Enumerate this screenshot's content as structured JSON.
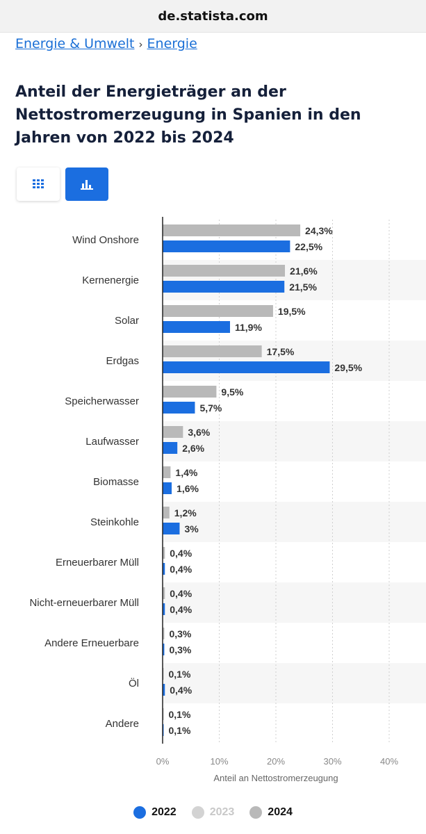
{
  "browser": {
    "url": "de.statista.com"
  },
  "breadcrumb": {
    "parent": "Energie & Umwelt",
    "separator": "›",
    "current": "Energie"
  },
  "page": {
    "title": "Anteil der Energieträger an der Nettostromerzeugung in Spanien in den Jahren von 2022 bis 2024"
  },
  "view_toggle": {
    "table_icon": "grid-icon",
    "chart_icon": "bar-chart-icon",
    "active": "chart"
  },
  "colors": {
    "accent": "#1b6ee0",
    "series_2022": "#1b6ee0",
    "series_2023": "#d3d3d3",
    "series_2024": "#b9b9b9"
  },
  "chart_data": {
    "type": "bar",
    "orientation": "horizontal",
    "categories": [
      "Wind Onshore",
      "Kernenergie",
      "Solar",
      "Erdgas",
      "Speicherwasser",
      "Laufwasser",
      "Biomasse",
      "Steinkohle",
      "Erneuerbarer Müll",
      "Nicht-erneuerbarer Müll",
      "Andere Erneuerbare",
      "Öl",
      "Andere"
    ],
    "series": [
      {
        "name": "2024",
        "values": [
          24.3,
          21.6,
          19.5,
          17.5,
          9.5,
          3.6,
          1.4,
          1.2,
          0.4,
          0.4,
          0.3,
          0.1,
          0.1
        ],
        "labels": [
          "24,3%",
          "21,6%",
          "19,5%",
          "17,5%",
          "9,5%",
          "3,6%",
          "1,4%",
          "1,2%",
          "0,4%",
          "0,4%",
          "0,3%",
          "0,1%",
          "0,1%"
        ]
      },
      {
        "name": "2022",
        "values": [
          22.5,
          21.5,
          11.9,
          29.5,
          5.7,
          2.6,
          1.6,
          3,
          0.4,
          0.4,
          0.3,
          0.4,
          0.1
        ],
        "labels": [
          "22,5%",
          "21,5%",
          "11,9%",
          "29,5%",
          "5,7%",
          "2,6%",
          "1,6%",
          "3%",
          "0,4%",
          "0,4%",
          "0,3%",
          "0,4%",
          "0,1%"
        ]
      }
    ],
    "xlim": [
      0,
      40
    ],
    "x_ticks": [
      "0%",
      "10%",
      "20%",
      "30%",
      "40%"
    ],
    "xlabel": "Anteil an Nettostromerzeugung",
    "ylabel": "",
    "grid": true,
    "legend": [
      {
        "name": "2022",
        "active": true
      },
      {
        "name": "2023",
        "active": false
      },
      {
        "name": "2024",
        "active": true
      }
    ],
    "legend_position": "bottom"
  }
}
